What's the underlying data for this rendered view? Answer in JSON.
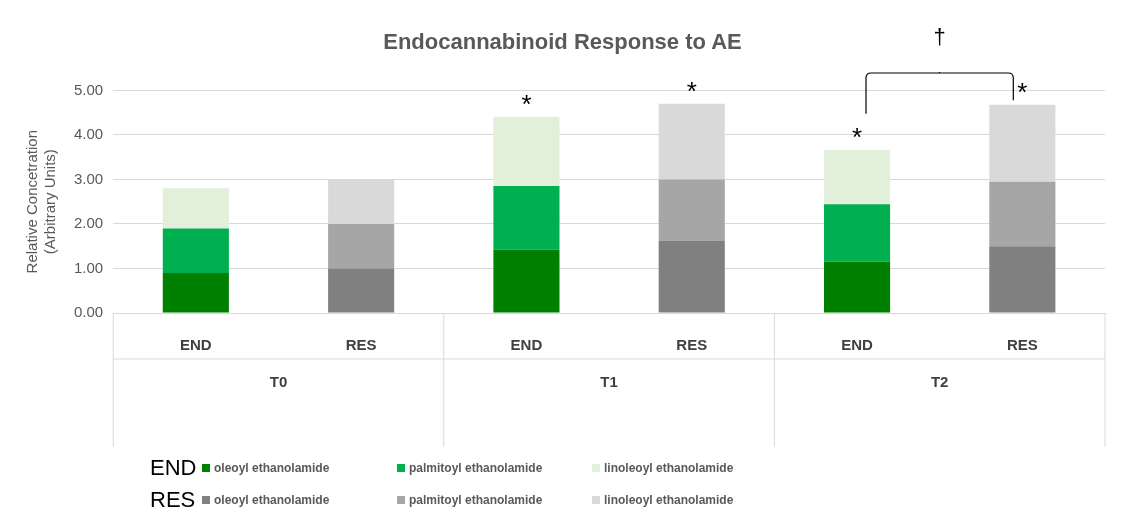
{
  "chart_data": {
    "type": "bar",
    "stacked": true,
    "title": "Endocannabinoid Response to AE",
    "ylabel": "Relative Concetration\n(Arbitrary Units)",
    "categories": [
      "END",
      "RES",
      "END",
      "RES",
      "END",
      "RES"
    ],
    "series": [
      {
        "name": "oleoyl ethanolamide",
        "color": "#008000",
        "values": [
          0.9,
          null,
          1.42,
          null,
          1.15,
          null
        ]
      },
      {
        "name": "palmitoyl ethanolamide",
        "color": "#00b050",
        "values": [
          1.0,
          null,
          1.43,
          null,
          1.29,
          null
        ]
      },
      {
        "name": "linoleoyl ethanolamide",
        "color": "#e2efda",
        "values": [
          0.9,
          null,
          1.55,
          null,
          1.22,
          null
        ],
        "value_labels": [
          null,
          null,
          "*",
          null,
          "*",
          null
        ]
      },
      {
        "name": "oleoyl ethanolamide",
        "color": "#808080",
        "values": [
          null,
          1.0,
          null,
          1.63,
          null,
          1.5
        ]
      },
      {
        "name": "palmitoyl ethanolamide",
        "color": "#a6a6a6",
        "values": [
          null,
          1.0,
          null,
          1.37,
          null,
          1.45
        ]
      },
      {
        "name": "linoleoyl ethanolamide",
        "color": "#d9d9d9",
        "values": [
          null,
          1.0,
          null,
          1.7,
          null,
          1.73
        ],
        "value_labels": [
          null,
          null,
          null,
          "*",
          null,
          "*"
        ]
      }
    ],
    "ylim": [
      0,
      5
    ],
    "yticks": [
      {
        "value": 0,
        "label": "0.00"
      },
      {
        "value": 1,
        "label": "1.00"
      },
      {
        "value": 2,
        "label": "2.00"
      },
      {
        "value": 3,
        "label": "3.00"
      },
      {
        "value": 4,
        "label": "4.00"
      },
      {
        "value": 5,
        "label": "5.00"
      }
    ],
    "grid": "y",
    "legend": "bottom",
    "annotations": [
      "T0",
      "T1",
      "T2",
      "†",
      "END",
      "RES"
    ]
  }
}
